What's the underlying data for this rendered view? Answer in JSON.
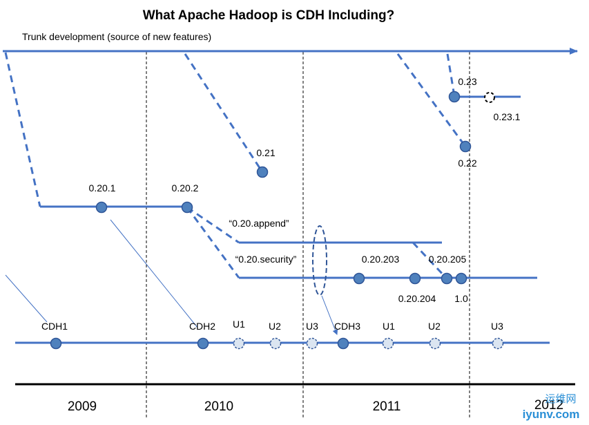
{
  "title": "What Apache Hadoop is CDH Including?",
  "trunk_label": "Trunk development (source of new features)",
  "releases": {
    "r0201": "0.20.1",
    "r0202": "0.20.2",
    "r021": "0.21",
    "r022": "0.22",
    "r023": "0.23",
    "r0231": "0.23.1",
    "append": "“0.20.append”",
    "security": "“0.20.security”",
    "r020203": "0.20.203",
    "r020204": "0.20.204",
    "r020205": "0.20.205",
    "r10": "1.0"
  },
  "cdh": {
    "cdh1": "CDH1",
    "cdh2": "CDH2",
    "cdh2_u1": "U1",
    "cdh2_u2": "U2",
    "cdh2_u3": "U3",
    "cdh3": "CDH3",
    "cdh3_u1": "U1",
    "cdh3_u2": "U2",
    "cdh3_u3": "U3"
  },
  "years": [
    "2009",
    "2010",
    "2011",
    "2012"
  ],
  "watermark": {
    "line1": "运维网",
    "line2": "iyunv.com"
  },
  "colors": {
    "line": "#4472c4",
    "node_fill": "#4f81bd",
    "node_stroke": "#2f5597",
    "update_fill": "#dbe5f1"
  }
}
